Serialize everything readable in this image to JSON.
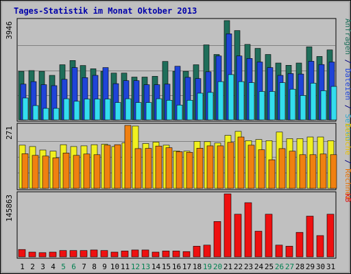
{
  "chart_data": {
    "type": "bar",
    "title": "Tages-Statistik im Monat Oktober 2013",
    "categories": [
      "1",
      "2",
      "3",
      "4",
      "5",
      "6",
      "7",
      "8",
      "9",
      "10",
      "11",
      "12",
      "13",
      "14",
      "15",
      "16",
      "17",
      "18",
      "19",
      "20",
      "21",
      "22",
      "23",
      "24",
      "25",
      "26",
      "27",
      "28",
      "29",
      "30",
      "31"
    ],
    "weekend_days": [
      "5",
      "6",
      "12",
      "13",
      "19",
      "20",
      "26",
      "27"
    ],
    "panels": [
      {
        "id": "top",
        "ytick": "3946",
        "ymax": 3946,
        "grid": true,
        "series": [
          {
            "name": "Anfragen",
            "color": "#1f6e5a",
            "values": [
              1930,
              1960,
              1930,
              1770,
              2190,
              2360,
              2160,
              2030,
              1930,
              1860,
              1860,
              1700,
              1700,
              1730,
              2320,
              1930,
              1930,
              2190,
              2980,
              2600,
              3946,
              3550,
              3000,
              2840,
              2600,
              2260,
              2170,
              2260,
              2900,
              2520,
              2780
            ]
          },
          {
            "name": "Dateien",
            "color": "#1f44d8",
            "values": [
              1420,
              1520,
              1400,
              1360,
              1610,
              2080,
              1680,
              1770,
              2080,
              1440,
              1560,
              1560,
              1400,
              1400,
              1420,
              2130,
              1690,
              1640,
              1910,
              2540,
              3420,
              2540,
              2440,
              2300,
              2080,
              1770,
              1840,
              1820,
              2330,
              2200,
              2300
            ]
          },
          {
            "name": "Seiten",
            "color": "#33ddee",
            "values": [
              870,
              570,
              460,
              460,
              840,
              740,
              830,
              830,
              830,
              690,
              840,
              690,
              690,
              840,
              780,
              590,
              780,
              1060,
              1090,
              1520,
              1800,
              1520,
              1480,
              1130,
              1130,
              1480,
              1220,
              970,
              1460,
              1160,
              1330
            ]
          }
        ]
      },
      {
        "id": "middle",
        "ytick": "271",
        "ymax": 271,
        "grid": true,
        "series": [
          {
            "name": "Besuche",
            "color": "#f0f020",
            "values": [
              186,
              180,
              165,
              160,
              188,
              180,
              183,
              188,
              190,
              180,
              196,
              268,
              193,
              199,
              186,
              161,
              160,
              202,
              201,
              195,
              228,
              245,
              205,
              210,
              205,
              242,
              214,
              214,
              221,
              221,
              205
            ]
          },
          {
            "name": "Rechner",
            "color": "#f08010",
            "values": [
              149,
              142,
              139,
              131,
              152,
              142,
              148,
              145,
              186,
              188,
              271,
              171,
              172,
              182,
              175,
              158,
              155,
              173,
              183,
              183,
              198,
              221,
              186,
              166,
              123,
              171,
              160,
              145,
              145,
              148,
              145
            ]
          }
        ]
      },
      {
        "id": "bottom",
        "ytick": "145863",
        "ymax": 145863,
        "grid": false,
        "series": [
          {
            "name": "kB",
            "color": "#ee1010",
            "values": [
              17200,
              11100,
              9900,
              11100,
              14800,
              14800,
              14800,
              16000,
              14800,
              11100,
              13600,
              16000,
              16000,
              11100,
              13600,
              13600,
              12300,
              24700,
              27200,
              82000,
              145863,
              98700,
              125400,
              59500,
              98700,
              27200,
              24700,
              56800,
              94400,
              49300,
              98700
            ]
          }
        ]
      }
    ],
    "right_label": {
      "panel1": [
        {
          "text": "Anfragen",
          "color": "#1f6e5a"
        },
        {
          "text": " / ",
          "color": "#000080"
        },
        {
          "text": "Dateien",
          "color": "#1f44d8"
        },
        {
          "text": " / ",
          "color": "#000080"
        },
        {
          "text": "Seiten",
          "color": "#33aacc"
        }
      ],
      "panel2": [
        {
          "text": "Besuche",
          "color": "#e8c000"
        },
        {
          "text": " / ",
          "color": "#000080"
        },
        {
          "text": "Rechner",
          "color": "#e87000"
        }
      ],
      "panel3": [
        {
          "text": "kB",
          "color": "#dd1010"
        }
      ]
    }
  }
}
